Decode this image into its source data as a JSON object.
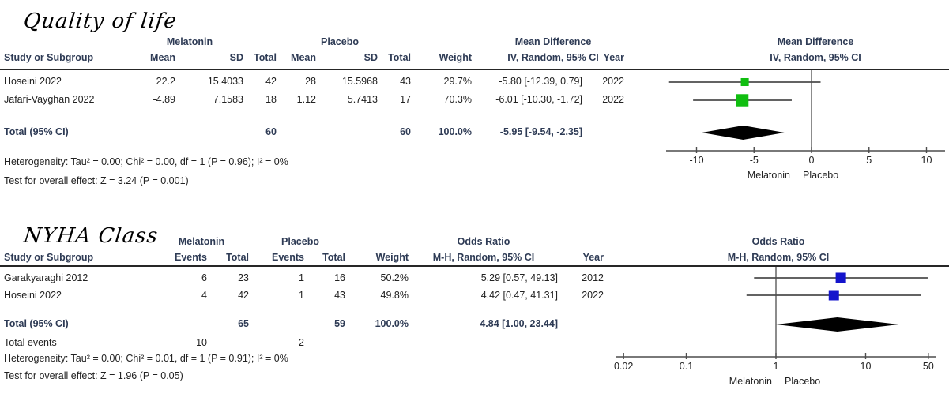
{
  "colors": {
    "square_mean_difference": "#10BE10",
    "square_odds_ratio": "#1414CC",
    "ci_line": "#4D4D4D",
    "diamond": "#000000",
    "header_text": "#2E3B55",
    "body_text": "#222222",
    "rule": "#262626"
  },
  "panels": [
    {
      "title": "Quality of life",
      "columns": {
        "study": "Study or Subgroup",
        "group_treatment": "Melatonin",
        "group_control": "Placebo",
        "effect": "Mean Difference",
        "mean": "Mean",
        "sd": "SD",
        "total": "Total",
        "weight": "Weight",
        "method": "IV, Random, 95% CI",
        "year": "Year"
      },
      "plot_header": {
        "title": "Mean Difference",
        "sub": "IV, Random, 95% CI"
      },
      "rows": [
        {
          "study": "Hoseini 2022",
          "mean_t": "22.2",
          "sd_t": "15.4033",
          "n_t": "42",
          "mean_c": "28",
          "sd_c": "15.5968",
          "n_c": "43",
          "weight": "29.7%",
          "ci": "-5.80 [-12.39, 0.79]",
          "year": "2022"
        },
        {
          "study": "Jafari-Vayghan 2022",
          "mean_t": "-4.89",
          "sd_t": "7.1583",
          "n_t": "18",
          "mean_c": "1.12",
          "sd_c": "5.7413",
          "n_c": "17",
          "weight": "70.3%",
          "ci": "-6.01 [-10.30, -1.72]",
          "year": "2022"
        }
      ],
      "total": {
        "label": "Total (95% CI)",
        "n_t": "60",
        "n_c": "60",
        "weight": "100.0%",
        "ci": "-5.95 [-9.54, -2.35]"
      },
      "heterogeneity": "Heterogeneity: Tau² = 0.00; Chi² = 0.00, df = 1 (P = 0.96); I² = 0%",
      "overall": "Test for overall effect: Z = 3.24 (P = 0.001)"
    },
    {
      "title": "NYHA Class",
      "columns": {
        "study": "Study or Subgroup",
        "group_treatment": "Melatonin",
        "group_control": "Placebo",
        "effect": "Odds Ratio",
        "events": "Events",
        "total": "Total",
        "weight": "Weight",
        "method": "M-H, Random, 95% CI",
        "year": "Year"
      },
      "plot_header": {
        "title": "Odds Ratio",
        "sub": "M-H, Random, 95% CI"
      },
      "rows": [
        {
          "study": "Garakyaraghi 2012",
          "e_t": "6",
          "n_t": "23",
          "e_c": "1",
          "n_c": "16",
          "weight": "50.2%",
          "ci": "5.29 [0.57, 49.13]",
          "year": "2012"
        },
        {
          "study": "Hoseini 2022",
          "e_t": "4",
          "n_t": "42",
          "e_c": "1",
          "n_c": "43",
          "weight": "49.8%",
          "ci": "4.42 [0.47, 41.31]",
          "year": "2022"
        }
      ],
      "total": {
        "label": "Total (95% CI)",
        "n_t": "65",
        "n_c": "59",
        "weight": "100.0%",
        "ci": "4.84 [1.00, 23.44]"
      },
      "total_events": {
        "label": "Total events",
        "e_t": "10",
        "e_c": "2"
      },
      "heterogeneity": "Heterogeneity: Tau² = 0.00; Chi² = 0.01, df = 1 (P = 0.91); I² = 0%",
      "overall": "Test for overall effect: Z = 1.96 (P = 0.05)"
    }
  ],
  "chart_data": [
    {
      "type": "forest",
      "title": "Quality of life",
      "effect_measure": "Mean Difference",
      "model": "IV, Random, 95% CI",
      "scale": "linear",
      "null_line": 0,
      "tick_values": [
        -10,
        -5,
        0,
        5,
        10
      ],
      "tick_labels": [
        "-10",
        "-5",
        "0",
        "5",
        "10"
      ],
      "group_labels": [
        "Melatonin",
        "Placebo"
      ],
      "studies": [
        {
          "name": "Hoseini 2022",
          "est": -5.8,
          "ci_low": -12.39,
          "ci_high": 0.79,
          "weight_pct": 29.7,
          "year": 2022
        },
        {
          "name": "Jafari-Vayghan 2022",
          "est": -6.01,
          "ci_low": -10.3,
          "ci_high": -1.72,
          "weight_pct": 70.3,
          "year": 2022
        }
      ],
      "total": {
        "est": -5.95,
        "ci_low": -9.54,
        "ci_high": -2.35,
        "weight_pct": 100.0
      },
      "heterogeneity": {
        "tau2": 0.0,
        "chi2": 0.0,
        "df": 1,
        "p": 0.96,
        "i2_pct": 0
      },
      "overall_effect": {
        "z": 3.24,
        "p": 0.001
      }
    },
    {
      "type": "forest",
      "title": "NYHA Class",
      "effect_measure": "Odds Ratio",
      "model": "M-H, Random, 95% CI",
      "scale": "log",
      "null_line": 1,
      "tick_values": [
        0.02,
        0.1,
        1,
        10,
        50
      ],
      "tick_labels": [
        "0.02",
        "0.1",
        "1",
        "10",
        "50"
      ],
      "group_labels": [
        "Melatonin",
        "Placebo"
      ],
      "studies": [
        {
          "name": "Garakyaraghi 2012",
          "est": 5.29,
          "ci_low": 0.57,
          "ci_high": 49.13,
          "weight_pct": 50.2,
          "year": 2012
        },
        {
          "name": "Hoseini 2022",
          "est": 4.42,
          "ci_low": 0.47,
          "ci_high": 41.31,
          "weight_pct": 49.8,
          "year": 2022
        }
      ],
      "total": {
        "est": 4.84,
        "ci_low": 1.0,
        "ci_high": 23.44,
        "weight_pct": 100.0
      },
      "total_events": {
        "treatment": 10,
        "control": 2
      },
      "heterogeneity": {
        "tau2": 0.0,
        "chi2": 0.01,
        "df": 1,
        "p": 0.91,
        "i2_pct": 0
      },
      "overall_effect": {
        "z": 1.96,
        "p": 0.05
      }
    }
  ]
}
